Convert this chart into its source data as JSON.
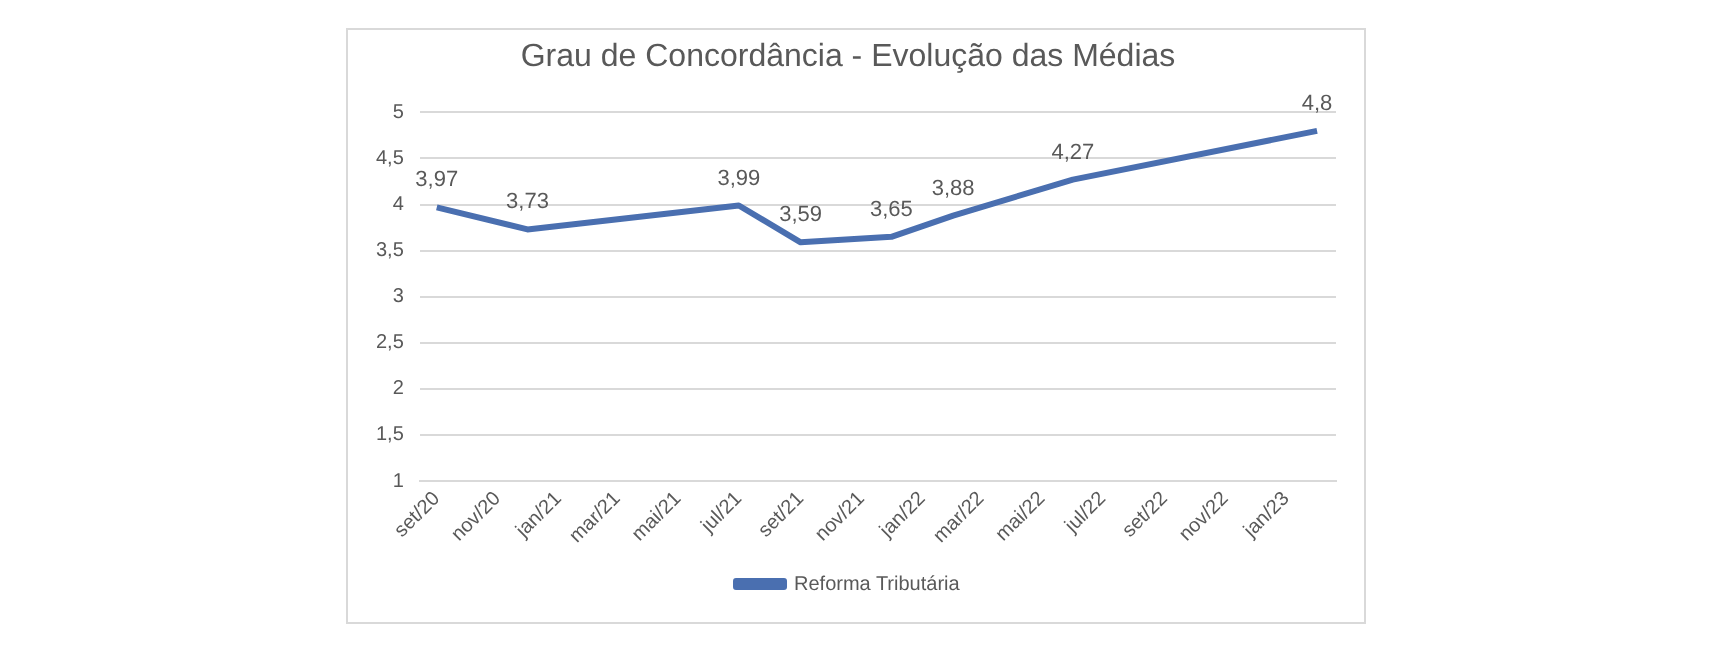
{
  "chart_data": {
    "type": "line",
    "title": "Grau de Concordância - Evolução das Médias",
    "x": [
      "2020-09-01",
      "2020-12-01",
      "2021-07-01",
      "2021-09-01",
      "2021-12-01",
      "2022-02-01",
      "2022-06-01",
      "2023-02-01"
    ],
    "series": [
      {
        "name": "Reforma Tributária",
        "color": "#4a6fb0",
        "values": [
          3.97,
          3.73,
          3.99,
          3.59,
          3.65,
          3.88,
          4.27,
          4.8
        ],
        "value_labels": [
          "3,97",
          "3,73",
          "3,99",
          "3,59",
          "3,65",
          "3,88",
          "4,27",
          "4,8"
        ]
      }
    ],
    "xlim": [
      "2020-08-15",
      "2023-02-20"
    ],
    "xticks": [
      {
        "value": "2020-09-01",
        "label": "set/20"
      },
      {
        "value": "2020-11-01",
        "label": "nov/20"
      },
      {
        "value": "2021-01-01",
        "label": "jan/21"
      },
      {
        "value": "2021-03-01",
        "label": "mar/21"
      },
      {
        "value": "2021-05-01",
        "label": "mai/21"
      },
      {
        "value": "2021-07-01",
        "label": "jul/21"
      },
      {
        "value": "2021-09-01",
        "label": "set/21"
      },
      {
        "value": "2021-11-01",
        "label": "nov/21"
      },
      {
        "value": "2022-01-01",
        "label": "jan/22"
      },
      {
        "value": "2022-03-01",
        "label": "mar/22"
      },
      {
        "value": "2022-05-01",
        "label": "mai/22"
      },
      {
        "value": "2022-07-01",
        "label": "jul/22"
      },
      {
        "value": "2022-09-01",
        "label": "set/22"
      },
      {
        "value": "2022-11-01",
        "label": "nov/22"
      },
      {
        "value": "2023-01-01",
        "label": "jan/23"
      }
    ],
    "ylim": [
      1,
      5
    ],
    "yticks": [
      1,
      {
        "value": 1.5,
        "label": "1,5"
      },
      2,
      {
        "value": 2.5,
        "label": "2,5"
      },
      3,
      {
        "value": 3.5,
        "label": "3,5"
      },
      4,
      {
        "value": 4.5,
        "label": "4,5"
      },
      5
    ],
    "grid": "y",
    "legend": "bottom",
    "marker": "none",
    "line_style": "solid"
  }
}
